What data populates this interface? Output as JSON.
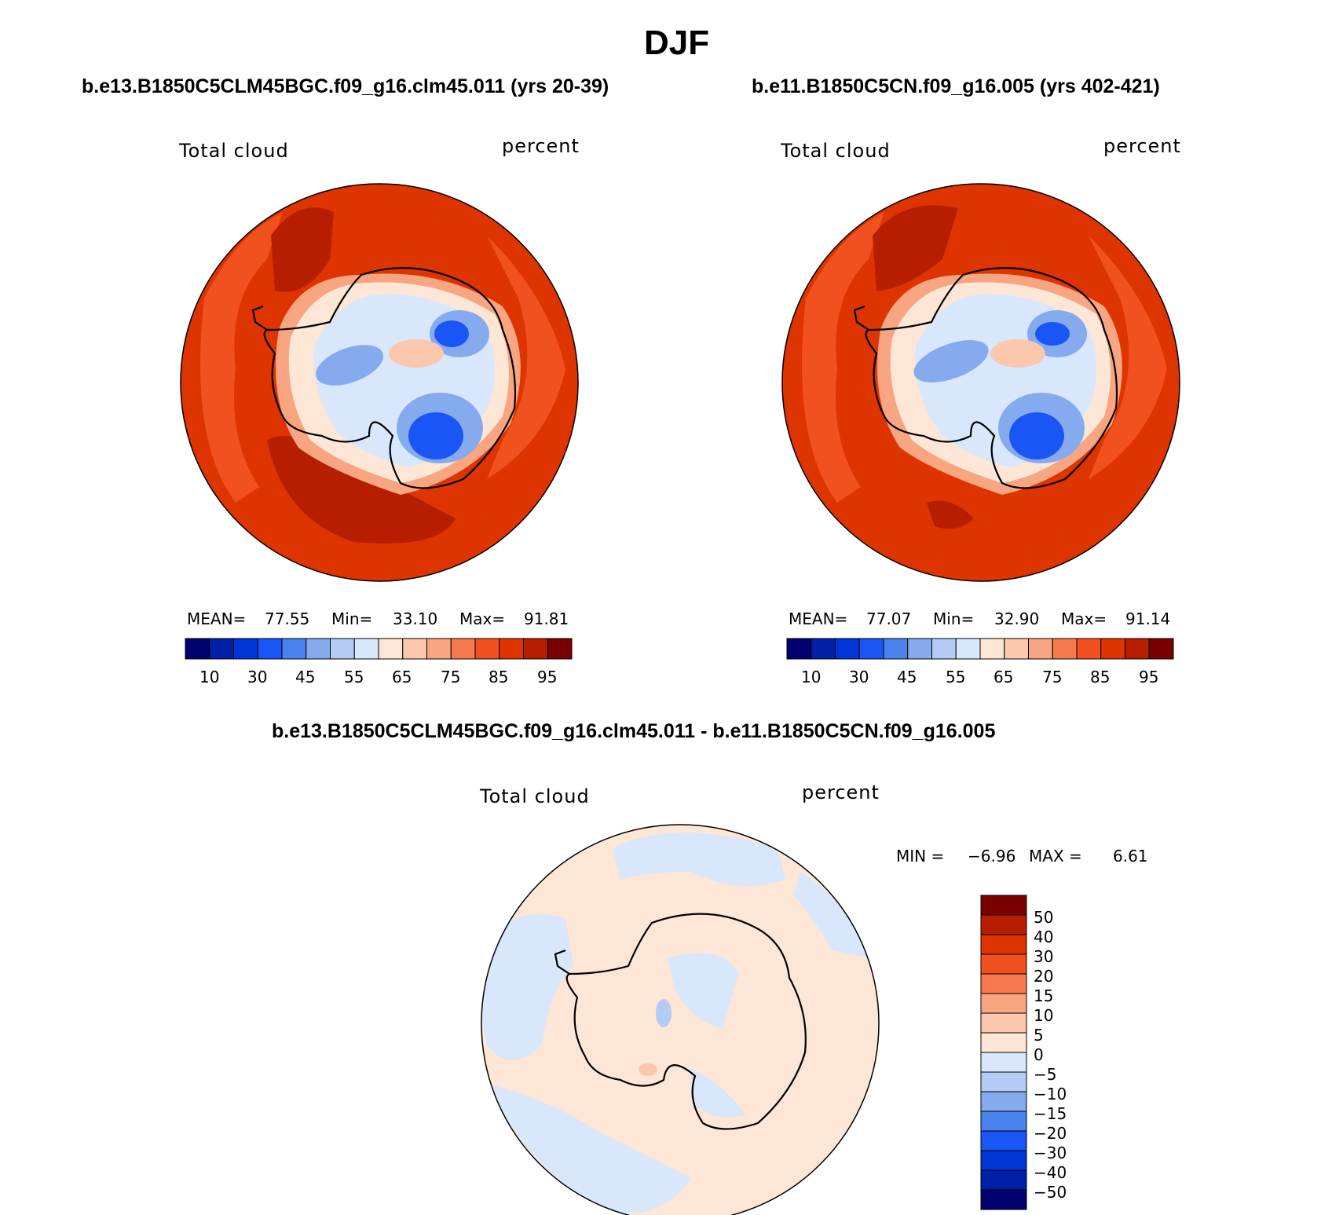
{
  "title": "DJF",
  "palette": [
    "#00006e",
    "#0020a8",
    "#0036d8",
    "#1a55f5",
    "#4a83f0",
    "#85aaee",
    "#b4cbf5",
    "#d8e7fb",
    "#fde6d6",
    "#fbc7ad",
    "#f8a582",
    "#f77a4e",
    "#f0511e",
    "#dd3400",
    "#b71e00",
    "#7a0000"
  ],
  "panels": [
    {
      "case": "b.e13.B1850C5CLM45BGC.f09_g16.clm45.011 (yrs 20-39)",
      "variable": "Total cloud",
      "units": "percent",
      "stats": {
        "mean_label": "MEAN=",
        "mean": "77.55",
        "min_label": "Min=",
        "min": "33.10",
        "max_label": "Max=",
        "max": "91.81"
      },
      "colorbar_ticks": [
        "10",
        "30",
        "45",
        "55",
        "65",
        "75",
        "85",
        "95"
      ]
    },
    {
      "case": "b.e11.B1850C5CN.f09_g16.005 (yrs 402-421)",
      "variable": "Total cloud",
      "units": "percent",
      "stats": {
        "mean_label": "MEAN=",
        "mean": "77.07",
        "min_label": "Min=",
        "min": "32.90",
        "max_label": "Max=",
        "max": "91.14"
      },
      "colorbar_ticks": [
        "10",
        "30",
        "45",
        "55",
        "65",
        "75",
        "85",
        "95"
      ]
    }
  ],
  "difference": {
    "case": "b.e13.B1850C5CLM45BGC.f09_g16.clm45.011 - b.e11.B1850C5CN.f09_g16.005",
    "variable": "Total cloud",
    "units": "percent",
    "stats": {
      "min_label": "MIN =",
      "min": "−6.96",
      "max_label": "MAX =",
      "max": "6.61"
    },
    "colorbar_ticks": [
      "50",
      "40",
      "30",
      "20",
      "15",
      "10",
      "5",
      "0",
      "−5",
      "−10",
      "−15",
      "−20",
      "−30",
      "−40",
      "−50"
    ],
    "colorbar_colors": [
      "#7a0000",
      "#b71e00",
      "#dd3400",
      "#f0511e",
      "#f77a4e",
      "#f8a582",
      "#fbc7ad",
      "#fde6d6",
      "#d8e7fb",
      "#b4cbf5",
      "#85aaee",
      "#4a83f0",
      "#1a55f5",
      "#0036d8",
      "#0020a8",
      "#00006e"
    ]
  }
}
